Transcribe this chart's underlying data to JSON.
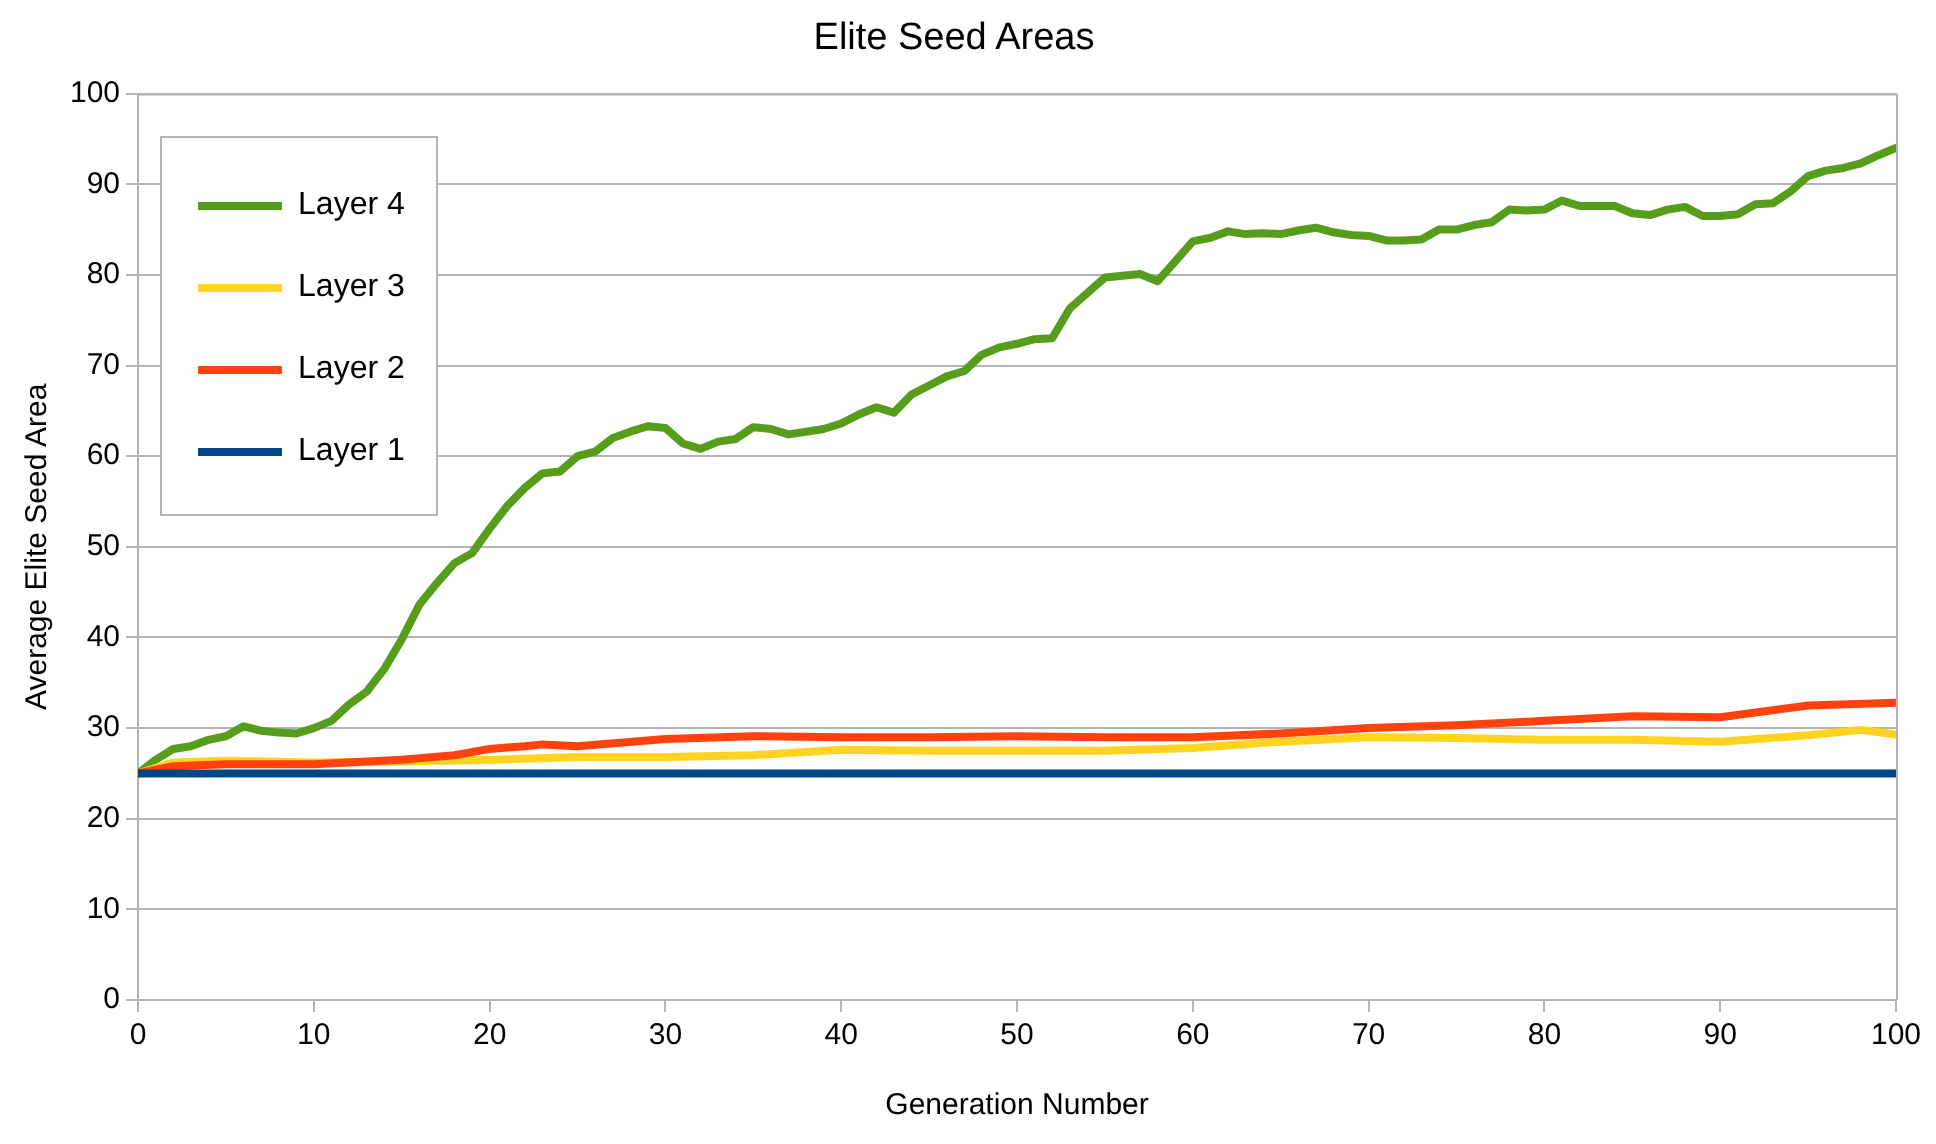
{
  "chart_data": {
    "type": "line",
    "title": "Elite Seed Areas",
    "xlabel": "Generation Number",
    "ylabel": "Average Elite Seed Area",
    "xlim": [
      0,
      100
    ],
    "xticks": [
      0,
      10,
      20,
      30,
      40,
      50,
      60,
      70,
      80,
      90,
      100
    ],
    "ylim": [
      0,
      100
    ],
    "yticks": [
      0,
      10,
      20,
      30,
      40,
      50,
      60,
      70,
      80,
      90,
      100
    ],
    "grid": "y",
    "legend": "top left",
    "marker": "none",
    "line_style": "solid",
    "series": [
      {
        "name": "Layer 4",
        "color": "#579d1c",
        "x": [
          0,
          1,
          2,
          3,
          4,
          5,
          6,
          7,
          8,
          9,
          10,
          11,
          12,
          13,
          14,
          15,
          16,
          17,
          18,
          19,
          20,
          21,
          22,
          23,
          24,
          25,
          26,
          27,
          28,
          29,
          30,
          31,
          32,
          33,
          34,
          35,
          36,
          37,
          38,
          39,
          40,
          41,
          42,
          43,
          44,
          45,
          46,
          47,
          48,
          49,
          50,
          51,
          52,
          53,
          54,
          55,
          56,
          57,
          58,
          59,
          60,
          61,
          62,
          63,
          64,
          65,
          66,
          67,
          68,
          69,
          70,
          71,
          72,
          73,
          74,
          75,
          76,
          77,
          78,
          79,
          80,
          81,
          82,
          83,
          84,
          85,
          86,
          87,
          88,
          89,
          90,
          91,
          92,
          93,
          94,
          95,
          96,
          97,
          98,
          99,
          100
        ],
        "values": [
          25,
          26.5,
          27.7,
          28,
          28.7,
          29.1,
          30.2,
          29.7,
          29.5,
          29.4,
          30,
          30.8,
          32.6,
          34,
          36.5,
          39.8,
          43.6,
          46,
          48.2,
          49.3,
          52,
          54.5,
          56.5,
          58.1,
          58.3,
          60,
          60.5,
          62,
          62.7,
          63.3,
          63.1,
          61.4,
          60.8,
          61.6,
          61.9,
          63.2,
          63,
          62.4,
          62.7,
          63,
          63.6,
          64.6,
          65.4,
          64.8,
          66.8,
          67.8,
          68.8,
          69.4,
          71.2,
          72,
          72.4,
          72.9,
          73,
          76.3,
          78,
          79.7,
          79.9,
          80.1,
          79.3,
          81.5,
          83.7,
          84.1,
          84.8,
          84.5,
          84.6,
          84.5,
          84.9,
          85.2,
          84.7,
          84.4,
          84.3,
          83.8,
          83.8,
          83.9,
          85,
          85,
          85.5,
          85.8,
          87.2,
          87.1,
          87.2,
          88.2,
          87.6,
          87.6,
          87.6,
          86.8,
          86.6,
          87.2,
          87.5,
          86.5,
          86.5,
          86.7,
          87.8,
          87.9,
          89.2,
          90.9,
          91.5,
          91.8,
          92.3,
          93.2,
          94
        ]
      },
      {
        "name": "Layer 3",
        "color": "#ffd320",
        "x": [
          0,
          2,
          5,
          10,
          15,
          20,
          25,
          30,
          35,
          40,
          45,
          50,
          55,
          60,
          65,
          70,
          75,
          80,
          85,
          90,
          95,
          98,
          100
        ],
        "values": [
          25,
          26.2,
          26.4,
          26.2,
          26.3,
          26.5,
          26.8,
          26.8,
          27,
          27.6,
          27.5,
          27.5,
          27.5,
          27.8,
          28.5,
          29,
          28.9,
          28.7,
          28.7,
          28.5,
          29.2,
          29.8,
          29.3
        ]
      },
      {
        "name": "Layer 2",
        "color": "#ff420e",
        "x": [
          0,
          2,
          5,
          10,
          15,
          18,
          20,
          22,
          23,
          25,
          30,
          35,
          40,
          45,
          50,
          55,
          60,
          65,
          70,
          75,
          80,
          85,
          90,
          95,
          100
        ],
        "values": [
          25,
          25.8,
          26,
          26,
          26.5,
          27,
          27.7,
          28,
          28.2,
          28,
          28.8,
          29.1,
          29,
          29,
          29.1,
          29,
          29,
          29.4,
          30,
          30.3,
          30.8,
          31.3,
          31.2,
          32.5,
          32.8
        ]
      },
      {
        "name": "Layer 1",
        "color": "#004586",
        "x": [
          0,
          100
        ],
        "values": [
          25,
          25
        ]
      }
    ]
  }
}
